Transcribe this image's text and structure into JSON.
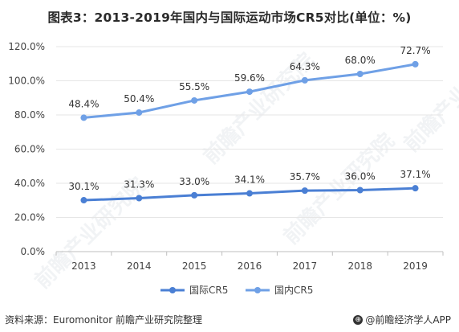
{
  "header": {
    "title": "图表3：2013-2019年国内与国际运动市场CR5对比(单位：%)"
  },
  "footer": {
    "source": "资料来源：Euromonitor 前瞻产业研究院整理",
    "brand": "@前瞻经济学人APP"
  },
  "watermark": {
    "text": "前瞻产业研究院"
  },
  "colors": {
    "international": "#4a7fd4",
    "domestic": "#6fa0e6",
    "grid": "#e6e6e6",
    "axis": "#bfbfbf"
  },
  "chart_data": {
    "type": "line",
    "categories": [
      "2013",
      "2014",
      "2015",
      "2016",
      "2017",
      "2018",
      "2019"
    ],
    "ylim": [
      0,
      120
    ],
    "yticks": [
      "0.0%",
      "20.0%",
      "40.0%",
      "60.0%",
      "80.0%",
      "100.0%",
      "120.0%"
    ],
    "grid": true,
    "legend": "bottom-center",
    "series": [
      {
        "name": "国际CR5",
        "values": [
          30.1,
          31.3,
          33.0,
          34.1,
          35.7,
          36.0,
          37.1
        ],
        "labels": [
          "30.1%",
          "31.3%",
          "33.0%",
          "34.1%",
          "35.7%",
          "36.0%",
          "37.1%"
        ]
      },
      {
        "name": "国内CR5",
        "values": [
          78.4,
          81.4,
          88.5,
          93.6,
          100.3,
          104.0,
          109.7
        ],
        "labels": [
          "48.4%",
          "50.4%",
          "55.5%",
          "59.6%",
          "64.3%",
          "68.0%",
          "72.7%"
        ]
      }
    ]
  }
}
